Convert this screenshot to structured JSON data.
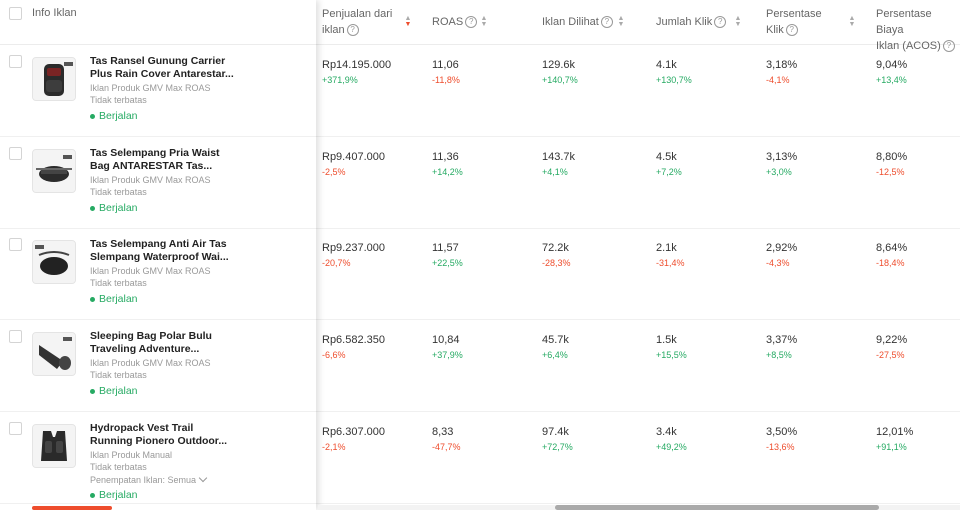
{
  "header": {
    "info": "Info Iklan",
    "penjualan_1": "Penjualan dari",
    "penjualan_2": "iklan",
    "roas": "ROAS",
    "dilihat": "Iklan Dilihat",
    "klik": "Jumlah Klik",
    "persen_1": "Persentase",
    "persen_2": "Klik",
    "acos_1": "Persentase Biaya",
    "acos_2": "Iklan (ACOS)"
  },
  "rows": [
    {
      "name1": "Tas Ransel Gunung Carrier",
      "name2": "Plus Rain Cover Antarestar...",
      "type": "Iklan Produk GMV Max ROAS",
      "period": "Tidak terbatas",
      "placement": "",
      "status": "Berjalan",
      "sales": "Rp14.195.000",
      "sales_chg": "+371,9%",
      "roas": "11,06",
      "roas_chg": "-11,8%",
      "views": "129.6k",
      "views_chg": "+140,7%",
      "clicks": "4.1k",
      "clicks_chg": "+130,7%",
      "ctr": "3,18%",
      "ctr_chg": "-4,1%",
      "acos": "9,04%",
      "acos_chg": "+13,4%"
    },
    {
      "name1": "Tas Selempang Pria Waist",
      "name2": "Bag ANTARESTAR Tas...",
      "type": "Iklan Produk GMV Max ROAS",
      "period": "Tidak terbatas",
      "placement": "",
      "status": "Berjalan",
      "sales": "Rp9.407.000",
      "sales_chg": "-2,5%",
      "roas": "11,36",
      "roas_chg": "+14,2%",
      "views": "143.7k",
      "views_chg": "+4,1%",
      "clicks": "4.5k",
      "clicks_chg": "+7,2%",
      "ctr": "3,13%",
      "ctr_chg": "+3,0%",
      "acos": "8,80%",
      "acos_chg": "-12,5%"
    },
    {
      "name1": "Tas Selempang Anti Air Tas",
      "name2": "Slempang Waterproof Wai...",
      "type": "Iklan Produk GMV Max ROAS",
      "period": "Tidak terbatas",
      "placement": "",
      "status": "Berjalan",
      "sales": "Rp9.237.000",
      "sales_chg": "-20,7%",
      "roas": "11,57",
      "roas_chg": "+22,5%",
      "views": "72.2k",
      "views_chg": "-28,3%",
      "clicks": "2.1k",
      "clicks_chg": "-31,4%",
      "ctr": "2,92%",
      "ctr_chg": "-4,3%",
      "acos": "8,64%",
      "acos_chg": "-18,4%"
    },
    {
      "name1": "Sleeping Bag Polar Bulu",
      "name2": "Traveling Adventure...",
      "type": "Iklan Produk GMV Max ROAS",
      "period": "Tidak terbatas",
      "placement": "",
      "status": "Berjalan",
      "sales": "Rp6.582.350",
      "sales_chg": "-6,6%",
      "roas": "10,84",
      "roas_chg": "+37,9%",
      "views": "45.7k",
      "views_chg": "+6,4%",
      "clicks": "1.5k",
      "clicks_chg": "+15,5%",
      "ctr": "3,37%",
      "ctr_chg": "+8,5%",
      "acos": "9,22%",
      "acos_chg": "-27,5%"
    },
    {
      "name1": "Hydropack Vest Trail",
      "name2": "Running Pionero Outdoor...",
      "type": "Iklan Produk Manual",
      "period": "Tidak terbatas",
      "placement": "Penempatan Iklan: Semua",
      "status": "Berjalan",
      "sales": "Rp6.307.000",
      "sales_chg": "-2,1%",
      "roas": "8,33",
      "roas_chg": "-47,7%",
      "views": "97.4k",
      "views_chg": "+72,7%",
      "clicks": "3.4k",
      "clicks_chg": "+49,2%",
      "ctr": "3,50%",
      "ctr_chg": "-13,6%",
      "acos": "12,01%",
      "acos_chg": "+91,1%"
    }
  ]
}
